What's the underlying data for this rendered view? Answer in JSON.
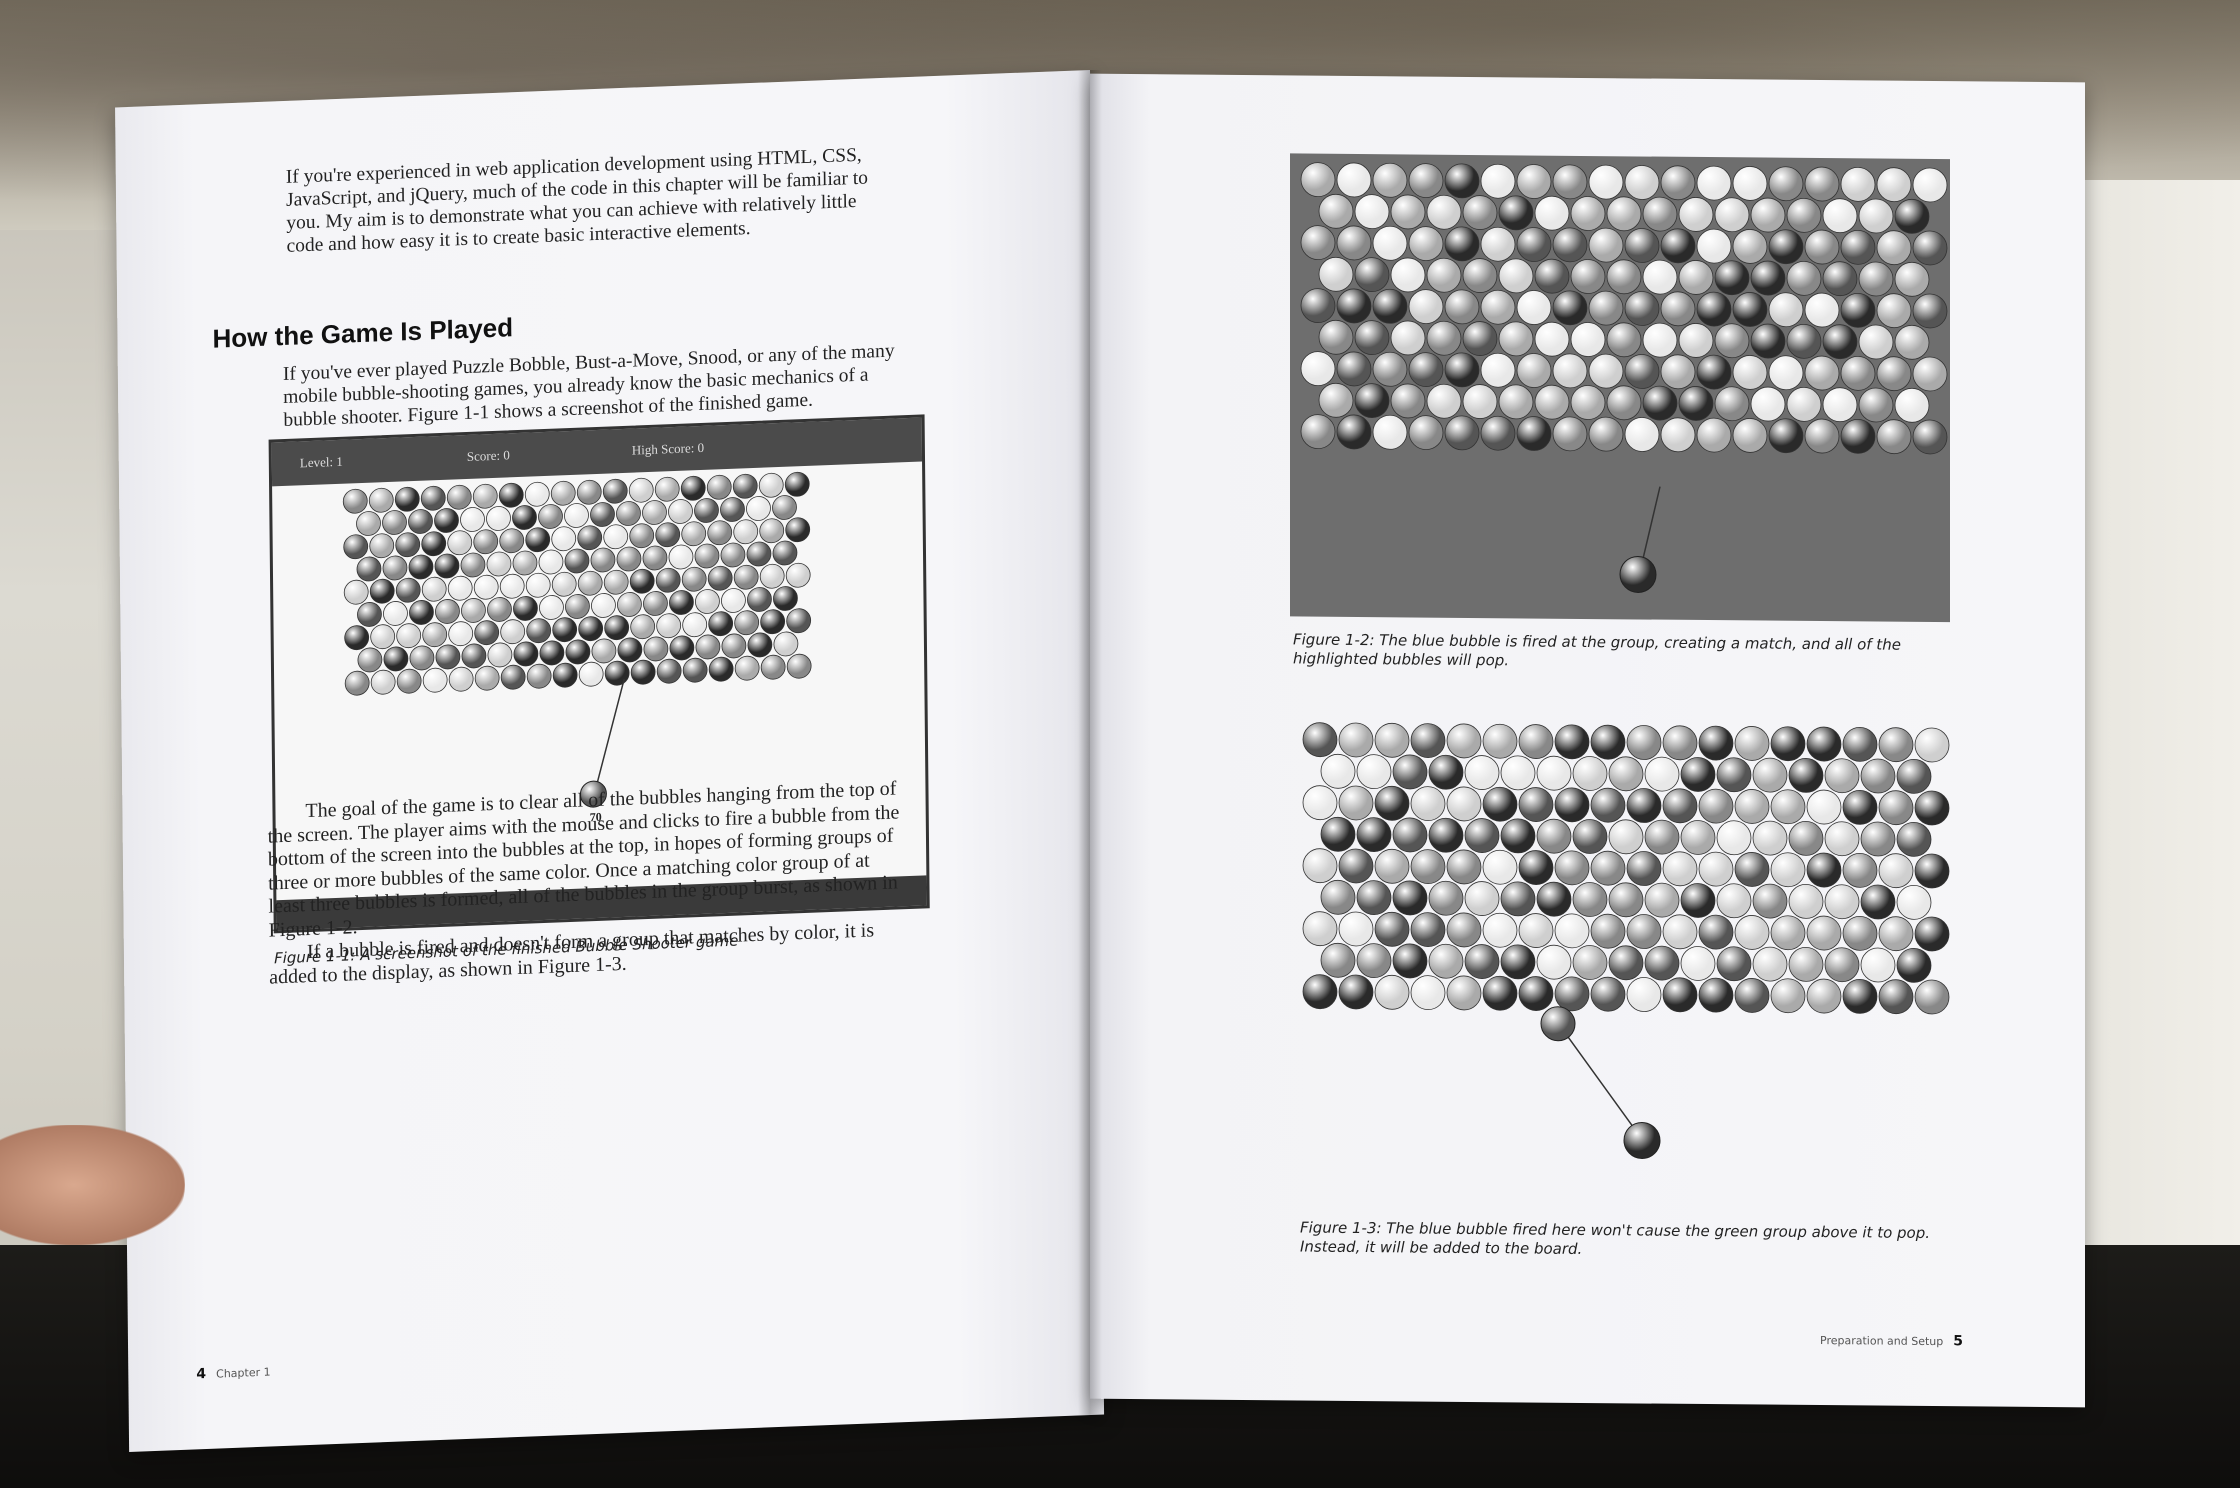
{
  "left_page": {
    "intro": "If you're experienced in web application development using HTML, CSS, JavaScript, and jQuery, much of the code in this chapter will be familiar to you. My aim is to demonstrate what you can achieve with relatively little code and how easy it is to create basic interactive elements.",
    "heading": "How the Game Is Played",
    "played_intro": "If you've ever played Puzzle Bobble, Bust-a-Move, Snood, or any of the many mobile bubble-shooting games, you already know the basic mechanics of a bubble shooter. Figure 1-1 shows a screenshot of the finished game.",
    "figure1": {
      "level_label": "Level: 1",
      "score_label": "Score: 0",
      "high_score_label": "High Score: 0",
      "shooter_number": "70"
    },
    "caption1": "Figure 1-1: A screenshot of the finished Bubble Shooter game",
    "body_p1": "The goal of the game is to clear all of the bubbles hanging from the top of the screen. The player aims with the mouse and clicks to fire a bubble from the bottom of the screen into the bubbles at the top, in hopes of forming groups of three or more bubbles of the same color. Once a matching color group of at least three bubbles is formed, all of the bubbles in the group burst, as shown in Figure 1-2.",
    "body_p2": "If a bubble is fired and doesn't form a group that matches by color, it is added to the display, as shown in Figure 1-3.",
    "page_number": "4",
    "running_head": "Chapter 1"
  },
  "right_page": {
    "caption2": "Figure 1-2: The blue bubble is fired at the group, creating a match, and all of the highlighted bubbles will pop.",
    "caption3": "Figure 1-3: The blue bubble fired here won't cause the green group above it to pop. Instead, it will be added to the board.",
    "running_head": "Preparation and Setup",
    "page_number": "5"
  },
  "colors": {
    "page": "#f6f6f9",
    "text": "#222222",
    "figure_bar": "#4b4b4b",
    "figure2_bg": "#6e6e6e"
  }
}
